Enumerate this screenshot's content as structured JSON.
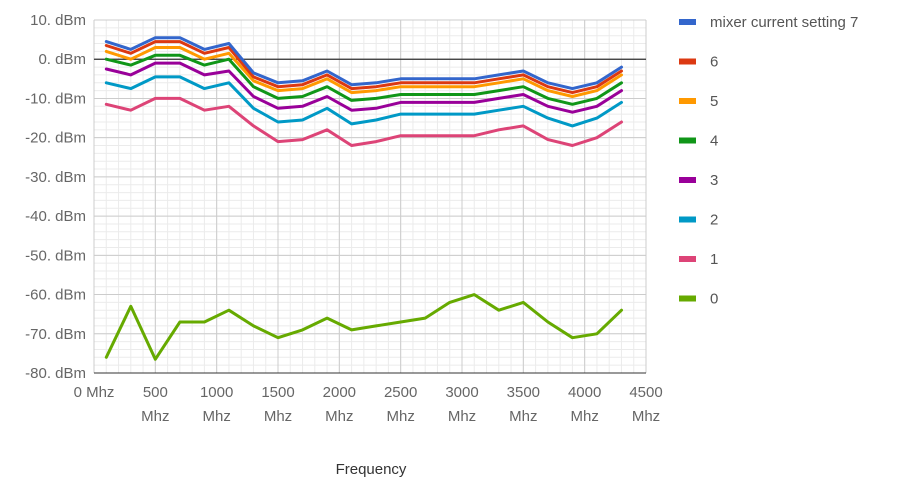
{
  "chart_data": {
    "type": "line",
    "xlabel": "Frequency",
    "ylabel": "",
    "xlim": [
      0,
      4500
    ],
    "ylim": [
      -80,
      10
    ],
    "grid": true,
    "legend_position": "right",
    "y_ticks": [
      {
        "value": 10,
        "label": "10. dBm"
      },
      {
        "value": 0,
        "label": "0. dBm"
      },
      {
        "value": -10,
        "label": "-10. dBm"
      },
      {
        "value": -20,
        "label": "-20. dBm"
      },
      {
        "value": -30,
        "label": "-30. dBm"
      },
      {
        "value": -40,
        "label": "-40. dBm"
      },
      {
        "value": -50,
        "label": "-50. dBm"
      },
      {
        "value": -60,
        "label": "-60. dBm"
      },
      {
        "value": -70,
        "label": "-70. dBm"
      },
      {
        "value": -80,
        "label": "-80. dBm"
      }
    ],
    "x_ticks": [
      {
        "value": 0,
        "lines": [
          "0 Mhz"
        ]
      },
      {
        "value": 500,
        "lines": [
          "500",
          "Mhz"
        ]
      },
      {
        "value": 1000,
        "lines": [
          "1000",
          "Mhz"
        ]
      },
      {
        "value": 1500,
        "lines": [
          "1500",
          "Mhz"
        ]
      },
      {
        "value": 2000,
        "lines": [
          "2000",
          "Mhz"
        ]
      },
      {
        "value": 2500,
        "lines": [
          "2500",
          "Mhz"
        ]
      },
      {
        "value": 3000,
        "lines": [
          "3000",
          "Mhz"
        ]
      },
      {
        "value": 3500,
        "lines": [
          "3500",
          "Mhz"
        ]
      },
      {
        "value": 4000,
        "lines": [
          "4000",
          "Mhz"
        ]
      },
      {
        "value": 4500,
        "lines": [
          "4500",
          "Mhz"
        ]
      }
    ],
    "x": [
      100,
      300,
      500,
      700,
      900,
      1100,
      1300,
      1500,
      1700,
      1900,
      2100,
      2300,
      2500,
      2700,
      2900,
      3100,
      3300,
      3500,
      3700,
      3900,
      4100,
      4300
    ],
    "series": [
      {
        "name": "mixer current setting 7",
        "color": "#3366cc",
        "values": [
          4.5,
          2.5,
          5.5,
          5.5,
          2.5,
          4,
          -3.5,
          -6,
          -5.5,
          -3,
          -6.5,
          -6,
          -5,
          -5,
          -5,
          -5,
          -4,
          -3,
          -6,
          -7.5,
          -6,
          -2
        ]
      },
      {
        "name": "6",
        "color": "#dc3912",
        "values": [
          3.5,
          1.5,
          4.5,
          4.5,
          1.5,
          3,
          -4.5,
          -7,
          -6.5,
          -4,
          -7.5,
          -7,
          -6,
          -6,
          -6,
          -6,
          -5,
          -4,
          -7,
          -8.5,
          -7,
          -3
        ]
      },
      {
        "name": "5",
        "color": "#ff9900",
        "values": [
          2,
          0,
          3,
          3,
          0,
          1.5,
          -5.5,
          -8,
          -7.5,
          -5,
          -8.5,
          -8,
          -7,
          -7,
          -7,
          -7,
          -6,
          -5,
          -8,
          -9.5,
          -8,
          -4
        ]
      },
      {
        "name": "4",
        "color": "#109618",
        "values": [
          0,
          -1.5,
          1,
          1,
          -1.5,
          0,
          -7,
          -10,
          -9.5,
          -7,
          -10.5,
          -10,
          -9,
          -9,
          -9,
          -9,
          -8,
          -7,
          -10,
          -11.5,
          -10,
          -6
        ]
      },
      {
        "name": "3",
        "color": "#990099",
        "values": [
          -2.5,
          -4,
          -1,
          -1,
          -4,
          -3,
          -9.5,
          -12.5,
          -12,
          -9.5,
          -13,
          -12.5,
          -11,
          -11,
          -11,
          -11,
          -10,
          -9,
          -12,
          -13.5,
          -12,
          -8
        ]
      },
      {
        "name": "2",
        "color": "#0099c6",
        "values": [
          -6,
          -7.5,
          -4.5,
          -4.5,
          -7.5,
          -6,
          -12.5,
          -16,
          -15.5,
          -12.5,
          -16.5,
          -15.5,
          -14,
          -14,
          -14,
          -14,
          -13,
          -12,
          -15,
          -17,
          -15,
          -11
        ]
      },
      {
        "name": "1",
        "color": "#dd4477",
        "values": [
          -11.5,
          -13,
          -10,
          -10,
          -13,
          -12,
          -17,
          -21,
          -20.5,
          -18,
          -22,
          -21,
          -19.5,
          -19.5,
          -19.5,
          -19.5,
          -18,
          -17,
          -20.5,
          -22,
          -20,
          -16
        ]
      },
      {
        "name": "0",
        "color": "#66aa00",
        "values": [
          -76,
          -63,
          -76.5,
          -67,
          -67,
          -64,
          -68,
          -71,
          -69,
          -66,
          -69,
          -68,
          -67,
          -66,
          -62,
          -60,
          -64,
          -62,
          -67,
          -71,
          -70,
          -64
        ]
      }
    ]
  }
}
